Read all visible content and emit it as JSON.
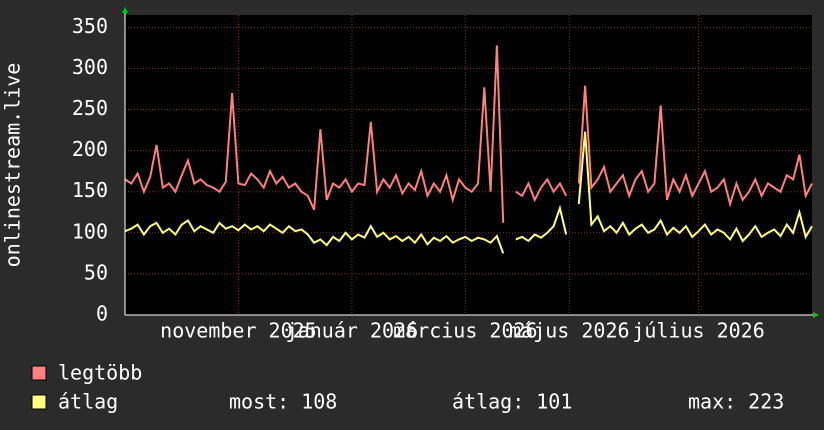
{
  "chart_data": {
    "type": "line",
    "y_label": "onlinestream.live",
    "xlim": [
      0,
      109
    ],
    "ylim": [
      0,
      365
    ],
    "xticks": [
      {
        "value": 18,
        "label": "november 2025"
      },
      {
        "value": 36,
        "label": "január 2026"
      },
      {
        "value": 54,
        "label": "március 2026"
      },
      {
        "value": 70.5,
        "label": "május 2026"
      },
      {
        "value": 91,
        "label": "július 2026"
      }
    ],
    "yticks": [
      0,
      50,
      100,
      150,
      200,
      250,
      300,
      350
    ],
    "grid": true,
    "series": [
      {
        "name": "legtöbb",
        "color": "#ff7f7f",
        "values": [
          165,
          160,
          172,
          150,
          168,
          207,
          155,
          160,
          150,
          170,
          188,
          160,
          165,
          158,
          155,
          150,
          162,
          270,
          160,
          158,
          172,
          165,
          155,
          175,
          160,
          168,
          155,
          160,
          150,
          145,
          128,
          226,
          140,
          160,
          155,
          165,
          150,
          160,
          158,
          235,
          150,
          165,
          155,
          170,
          148,
          160,
          152,
          175,
          145,
          160,
          150,
          170,
          140,
          165,
          155,
          150,
          160,
          277,
          150,
          328,
          112,
          null,
          150,
          145,
          160,
          140,
          155,
          165,
          150,
          160,
          145,
          null,
          160,
          279,
          155,
          165,
          180,
          150,
          160,
          170,
          145,
          165,
          175,
          150,
          160,
          255,
          140,
          165,
          150,
          170,
          145,
          160,
          175,
          150,
          155,
          165,
          135,
          160,
          140,
          150,
          165,
          145,
          160,
          155,
          150,
          170,
          165,
          195,
          145,
          160
        ]
      },
      {
        "name": "átlag",
        "color": "#ffff7f",
        "values": [
          102,
          105,
          110,
          98,
          108,
          112,
          100,
          105,
          98,
          110,
          115,
          102,
          108,
          104,
          100,
          112,
          105,
          108,
          103,
          110,
          104,
          108,
          102,
          110,
          105,
          100,
          108,
          102,
          104,
          98,
          88,
          92,
          85,
          95,
          90,
          100,
          92,
          98,
          94,
          108,
          95,
          100,
          92,
          96,
          90,
          95,
          88,
          98,
          86,
          94,
          90,
          96,
          88,
          92,
          95,
          90,
          94,
          92,
          88,
          96,
          75,
          null,
          92,
          95,
          90,
          98,
          94,
          100,
          108,
          130,
          98,
          null,
          135,
          223,
          110,
          120,
          102,
          108,
          100,
          112,
          98,
          105,
          110,
          100,
          104,
          115,
          98,
          106,
          100,
          108,
          95,
          102,
          110,
          98,
          104,
          100,
          92,
          105,
          90,
          98,
          108,
          95,
          100,
          104,
          96,
          110,
          100,
          125,
          95,
          108
        ]
      }
    ],
    "stats": [
      {
        "label": "most:",
        "value": 108
      },
      {
        "label": "átlag:",
        "value": 101
      },
      {
        "label": "max:",
        "value": 223
      }
    ]
  }
}
